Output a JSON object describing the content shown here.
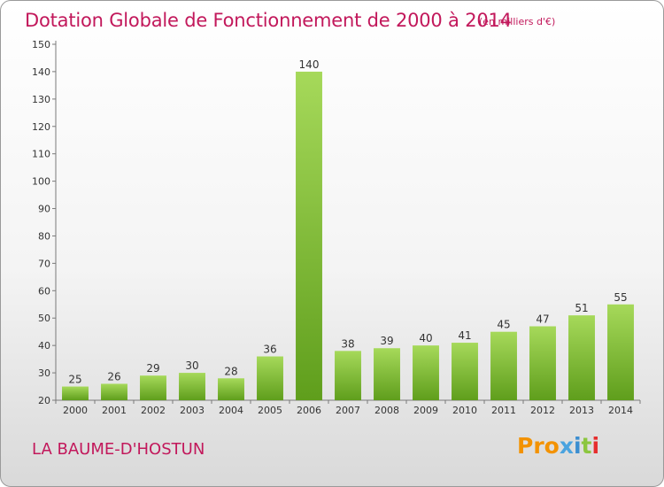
{
  "chart_data": {
    "type": "bar",
    "title": "Dotation Globale de Fonctionnement de 2000 à 2014",
    "unit_note": "(en milliers d'€)",
    "categories": [
      "2000",
      "2001",
      "2002",
      "2003",
      "2004",
      "2005",
      "2006",
      "2007",
      "2008",
      "2009",
      "2010",
      "2011",
      "2012",
      "2013",
      "2014"
    ],
    "values": [
      25,
      26,
      29,
      30,
      28,
      36,
      140,
      38,
      39,
      40,
      41,
      45,
      47,
      51,
      55
    ],
    "ylim": [
      20,
      150
    ],
    "yticks": [
      20,
      30,
      40,
      50,
      60,
      70,
      80,
      90,
      100,
      110,
      120,
      130,
      140,
      150
    ],
    "xlabel": "",
    "ylabel": "",
    "grid": false,
    "bar_color": "#7cc23a",
    "bar_color_light": "#a6d95a"
  },
  "commune": "LA BAUME-D'HOSTUN",
  "logo": {
    "p1": "Pro",
    "p2": "x",
    "p3": "i",
    "p4": "t",
    "p5": "i"
  },
  "colors": {
    "accent": "#c2185b",
    "axis": "#7a7a7a"
  }
}
